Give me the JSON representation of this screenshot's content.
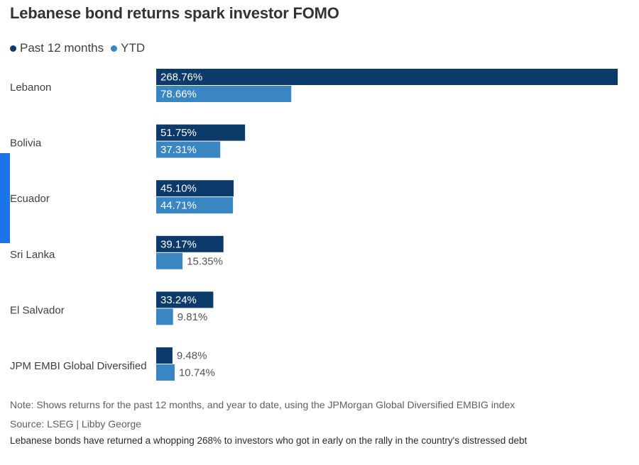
{
  "colors": {
    "past12": "#0b3a6b",
    "ytd": "#3a86c3",
    "accent": "#1a73e8"
  },
  "header": {
    "title": "Lebanese bond returns spark investor FOMO"
  },
  "legend": {
    "past12_label": "Past 12 months",
    "ytd_label": "YTD"
  },
  "footer": {
    "note": "Note: Shows returns for the past 12 months, and year to date, using the JPMorgan Global Diversified EMBIG index",
    "source": "Source: LSEG  | Libby George",
    "caption": "Lebanese bonds have returned a whopping 268% to investors who got in early on the rally in the country's distressed debt"
  },
  "chart_data": {
    "type": "bar",
    "orientation": "horizontal",
    "title": "Lebanese bond returns spark investor FOMO",
    "categories": [
      "Lebanon",
      "Bolivia",
      "Ecuador",
      "Sri Lanka",
      "El Salvador",
      "JPM EMBI Global Diversified"
    ],
    "series": [
      {
        "name": "Past 12 months",
        "values": [
          268.76,
          51.75,
          45.1,
          39.17,
          33.24,
          9.48
        ],
        "labels": [
          "268.76%",
          "51.75%",
          "45.10%",
          "39.17%",
          "33.24%",
          "9.48%"
        ]
      },
      {
        "name": "YTD",
        "values": [
          78.66,
          37.31,
          44.71,
          15.35,
          9.81,
          10.74
        ],
        "labels": [
          "78.66%",
          "37.31%",
          "44.71%",
          "15.35%",
          "9.81%",
          "10.74%"
        ]
      }
    ],
    "xlim": [
      0,
      268.76
    ],
    "xlabel": "",
    "ylabel": "",
    "grid": false,
    "legend_position": "top-left"
  }
}
